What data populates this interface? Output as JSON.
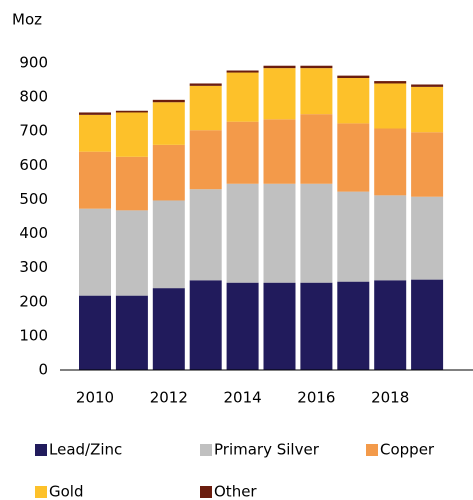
{
  "chart_data": {
    "type": "bar",
    "stacked": true,
    "y_label": "Moz",
    "categories": [
      "2010",
      null,
      "2012",
      null,
      "2014",
      null,
      "2016",
      null,
      "2018",
      null
    ],
    "series": [
      {
        "name": "Lead/Zinc",
        "color": "#211b5c",
        "values": [
          218,
          218,
          240,
          263,
          256,
          256,
          256,
          259,
          263,
          265
        ]
      },
      {
        "name": "Primary Silver",
        "color": "#c0c0c0",
        "values": [
          255,
          250,
          257,
          267,
          290,
          290,
          290,
          264,
          249,
          243
        ]
      },
      {
        "name": "Copper",
        "color": "#f39a4a",
        "values": [
          167,
          157,
          163,
          173,
          182,
          189,
          204,
          200,
          196,
          189
        ]
      },
      {
        "name": "Gold",
        "color": "#fdc12a",
        "values": [
          108,
          130,
          125,
          130,
          144,
          150,
          135,
          133,
          132,
          133
        ]
      },
      {
        "name": "Other",
        "color": "#6b1d0e",
        "values": [
          7,
          5,
          7,
          7,
          6,
          7,
          7,
          7,
          7,
          7
        ]
      }
    ],
    "ylim": [
      0,
      900
    ],
    "yticks": [
      0,
      100,
      200,
      300,
      400,
      500,
      600,
      700,
      800,
      900
    ]
  }
}
